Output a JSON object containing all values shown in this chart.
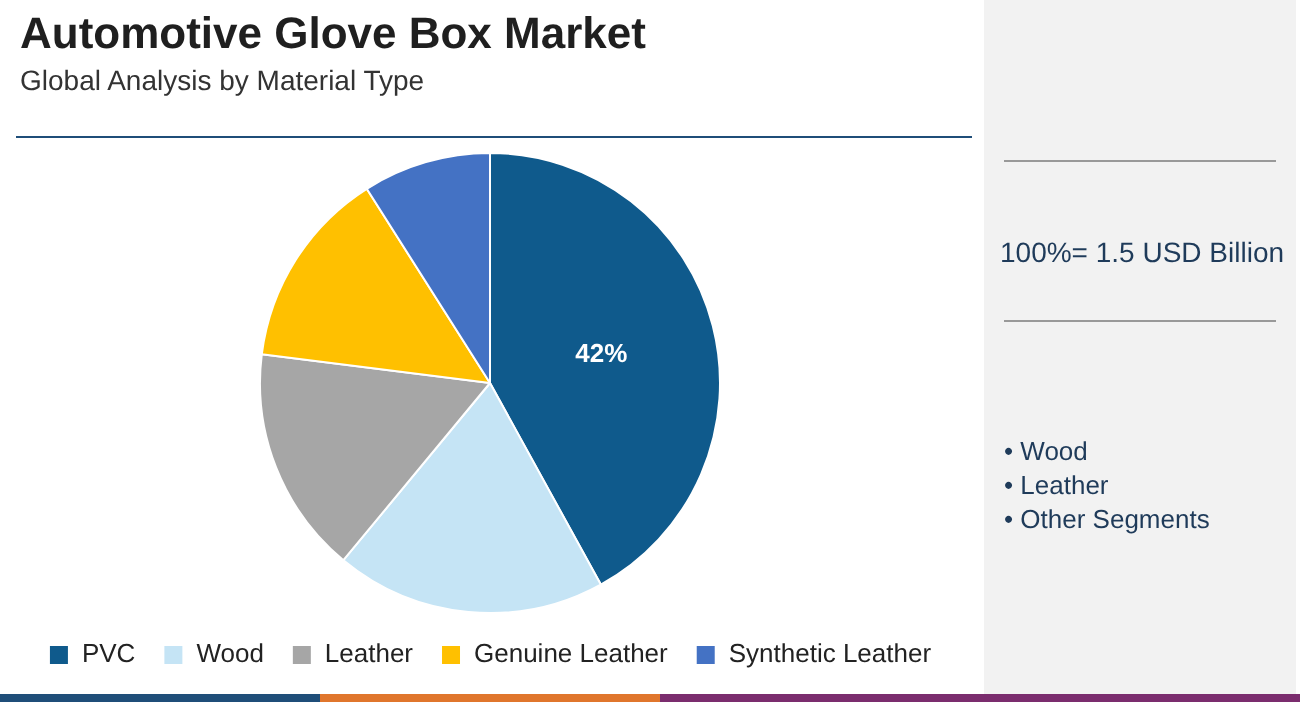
{
  "chart_data": {
    "type": "pie",
    "title": "Automotive Glove Box Market",
    "subtitle": "Global Analysis by Material Type",
    "categories": [
      "PVC",
      "Wood",
      "Leather",
      "Genuine Leather",
      "Synthetic Leather"
    ],
    "values": [
      42,
      19,
      16,
      14,
      9
    ],
    "colors": [
      "#0f5a8c",
      "#c5e4f5",
      "#a6a6a6",
      "#ffc000",
      "#4472c4"
    ],
    "value_labels": [
      "42%",
      null,
      null,
      null,
      null
    ],
    "legend": "bottom",
    "annotations": [
      "100%= 1.5 USD Billion",
      "• Wood",
      "• Leather",
      "• Other Segments"
    ]
  }
}
